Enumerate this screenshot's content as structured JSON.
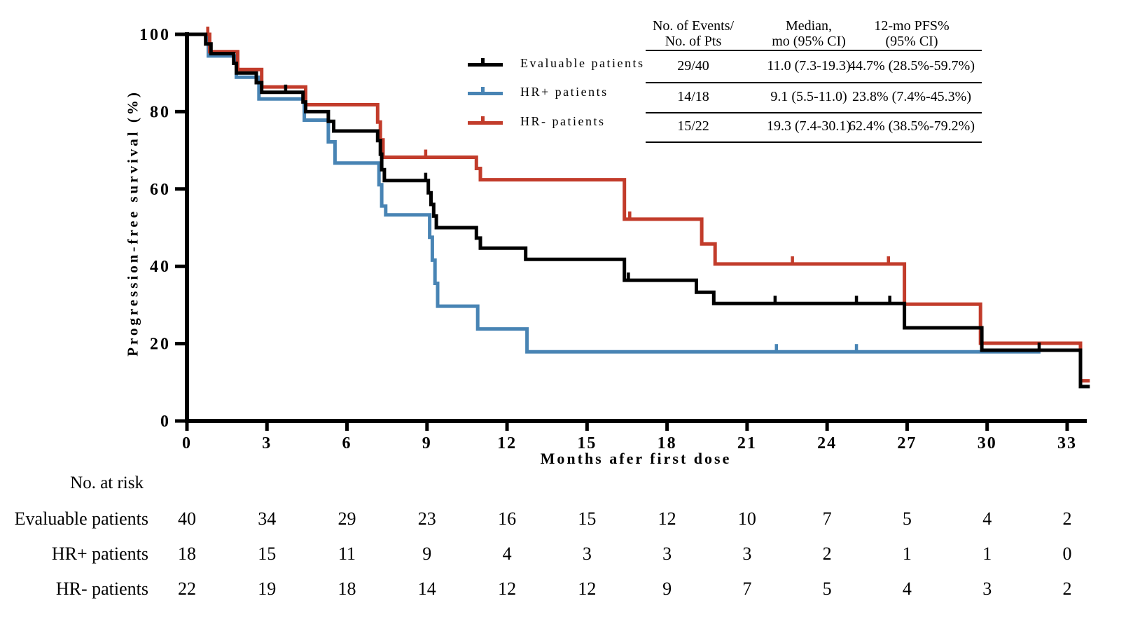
{
  "chart_data": {
    "type": "line",
    "subtype": "kaplan-meier-step",
    "title": "",
    "xlabel": "Months afer first dose",
    "ylabel": "Progression-free survival (%)",
    "xticks": [
      0,
      3,
      6,
      9,
      12,
      15,
      18,
      21,
      24,
      27,
      30,
      33
    ],
    "yticks": [
      0,
      20,
      40,
      60,
      80,
      100
    ],
    "xlim": [
      0,
      34.5
    ],
    "ylim": [
      0,
      100
    ],
    "grid": false,
    "legend_position": "upper-center-left",
    "series": [
      {
        "name": "Evaluable patients",
        "color": "#000000",
        "end": 33.85,
        "steps": [
          [
            0,
            100
          ],
          [
            0.7,
            97.5
          ],
          [
            0.9,
            95
          ],
          [
            1.75,
            92.5
          ],
          [
            1.85,
            90
          ],
          [
            2.6,
            87.5
          ],
          [
            2.8,
            85
          ],
          [
            4.35,
            82.5
          ],
          [
            4.45,
            80
          ],
          [
            5.3,
            77.5
          ],
          [
            5.5,
            75
          ],
          [
            7.15,
            72.5
          ],
          [
            7.25,
            69
          ],
          [
            7.3,
            65
          ],
          [
            7.4,
            62.2
          ],
          [
            9.05,
            59
          ],
          [
            9.15,
            56
          ],
          [
            9.25,
            53
          ],
          [
            9.35,
            50
          ],
          [
            10.85,
            47.3
          ],
          [
            11.0,
            44.7
          ],
          [
            12.7,
            41.8
          ],
          [
            16.4,
            36.4
          ],
          [
            19.1,
            33.3
          ],
          [
            19.75,
            30.4
          ],
          [
            26.9,
            24.1
          ],
          [
            29.8,
            18.3
          ],
          [
            33.5,
            8.9
          ]
        ],
        "censors": [
          [
            3.7,
            85
          ],
          [
            8.95,
            62.2
          ],
          [
            16.55,
            36.4
          ],
          [
            22.05,
            30.4
          ],
          [
            25.1,
            30.4
          ],
          [
            26.35,
            30.4
          ],
          [
            31.95,
            18.3
          ]
        ]
      },
      {
        "name": "HR+ patients",
        "color": "#4884B4",
        "end": 32.0,
        "steps": [
          [
            0,
            100
          ],
          [
            0.8,
            94.4
          ],
          [
            1.85,
            88.9
          ],
          [
            2.7,
            83.3
          ],
          [
            4.4,
            77.8
          ],
          [
            5.3,
            72.2
          ],
          [
            5.55,
            66.7
          ],
          [
            7.2,
            61.1
          ],
          [
            7.3,
            55.6
          ],
          [
            7.45,
            53.3
          ],
          [
            9.1,
            47.5
          ],
          [
            9.2,
            41.6
          ],
          [
            9.3,
            35.6
          ],
          [
            9.4,
            29.7
          ],
          [
            10.9,
            23.8
          ],
          [
            12.75,
            17.9
          ]
        ],
        "censors": [
          [
            22.1,
            17.9
          ],
          [
            25.1,
            17.9
          ]
        ]
      },
      {
        "name": "HR- patients",
        "color": "#C23C2B",
        "end": 33.85,
        "steps": [
          [
            0,
            100
          ],
          [
            0.85,
            95.5
          ],
          [
            1.9,
            90.9
          ],
          [
            2.8,
            86.4
          ],
          [
            4.45,
            81.8
          ],
          [
            7.15,
            77.3
          ],
          [
            7.25,
            72.7
          ],
          [
            7.35,
            68.2
          ],
          [
            10.85,
            65.3
          ],
          [
            11.0,
            62.4
          ],
          [
            16.4,
            52.2
          ],
          [
            19.3,
            45.8
          ],
          [
            19.8,
            40.6
          ],
          [
            26.9,
            30.2
          ],
          [
            29.75,
            20.1
          ],
          [
            33.5,
            10.4
          ]
        ],
        "censors": [
          [
            0.78,
            100
          ],
          [
            8.95,
            68.2
          ],
          [
            16.6,
            52.2
          ],
          [
            22.7,
            40.6
          ],
          [
            26.3,
            40.6
          ]
        ]
      }
    ]
  },
  "legend": {
    "items": [
      {
        "label": "Evaluable patients",
        "color": "#000000"
      },
      {
        "label": "HR+ patients",
        "color": "#4884B4"
      },
      {
        "label": "HR- patients",
        "color": "#C23C2B"
      }
    ]
  },
  "stats_table": {
    "headers": [
      [
        "No. of Events/",
        "No. of Pts"
      ],
      [
        "Median,",
        "mo (95% CI)"
      ],
      [
        "12-mo PFS%",
        "(95% CI)"
      ]
    ],
    "rows": [
      [
        "29/40",
        "11.0 (7.3-19.3)",
        "44.7% (28.5%-59.7%)"
      ],
      [
        "14/18",
        "9.1 (5.5-11.0)",
        "23.8% (7.4%-45.3%)"
      ],
      [
        "15/22",
        "19.3 (7.4-30.1)",
        "62.4% (38.5%-79.2%)"
      ]
    ]
  },
  "risk_table": {
    "title": "No. at risk",
    "months": [
      0,
      3,
      6,
      9,
      12,
      15,
      18,
      21,
      24,
      27,
      30,
      33
    ],
    "rows": [
      {
        "label": "Evaluable patients",
        "values": [
          40,
          34,
          29,
          23,
          16,
          15,
          12,
          10,
          7,
          5,
          4,
          2
        ]
      },
      {
        "label": "HR+ patients",
        "values": [
          18,
          15,
          11,
          9,
          4,
          3,
          3,
          3,
          2,
          1,
          1,
          0
        ]
      },
      {
        "label": "HR- patients",
        "values": [
          22,
          19,
          18,
          14,
          12,
          12,
          9,
          7,
          5,
          4,
          3,
          2
        ]
      }
    ]
  }
}
